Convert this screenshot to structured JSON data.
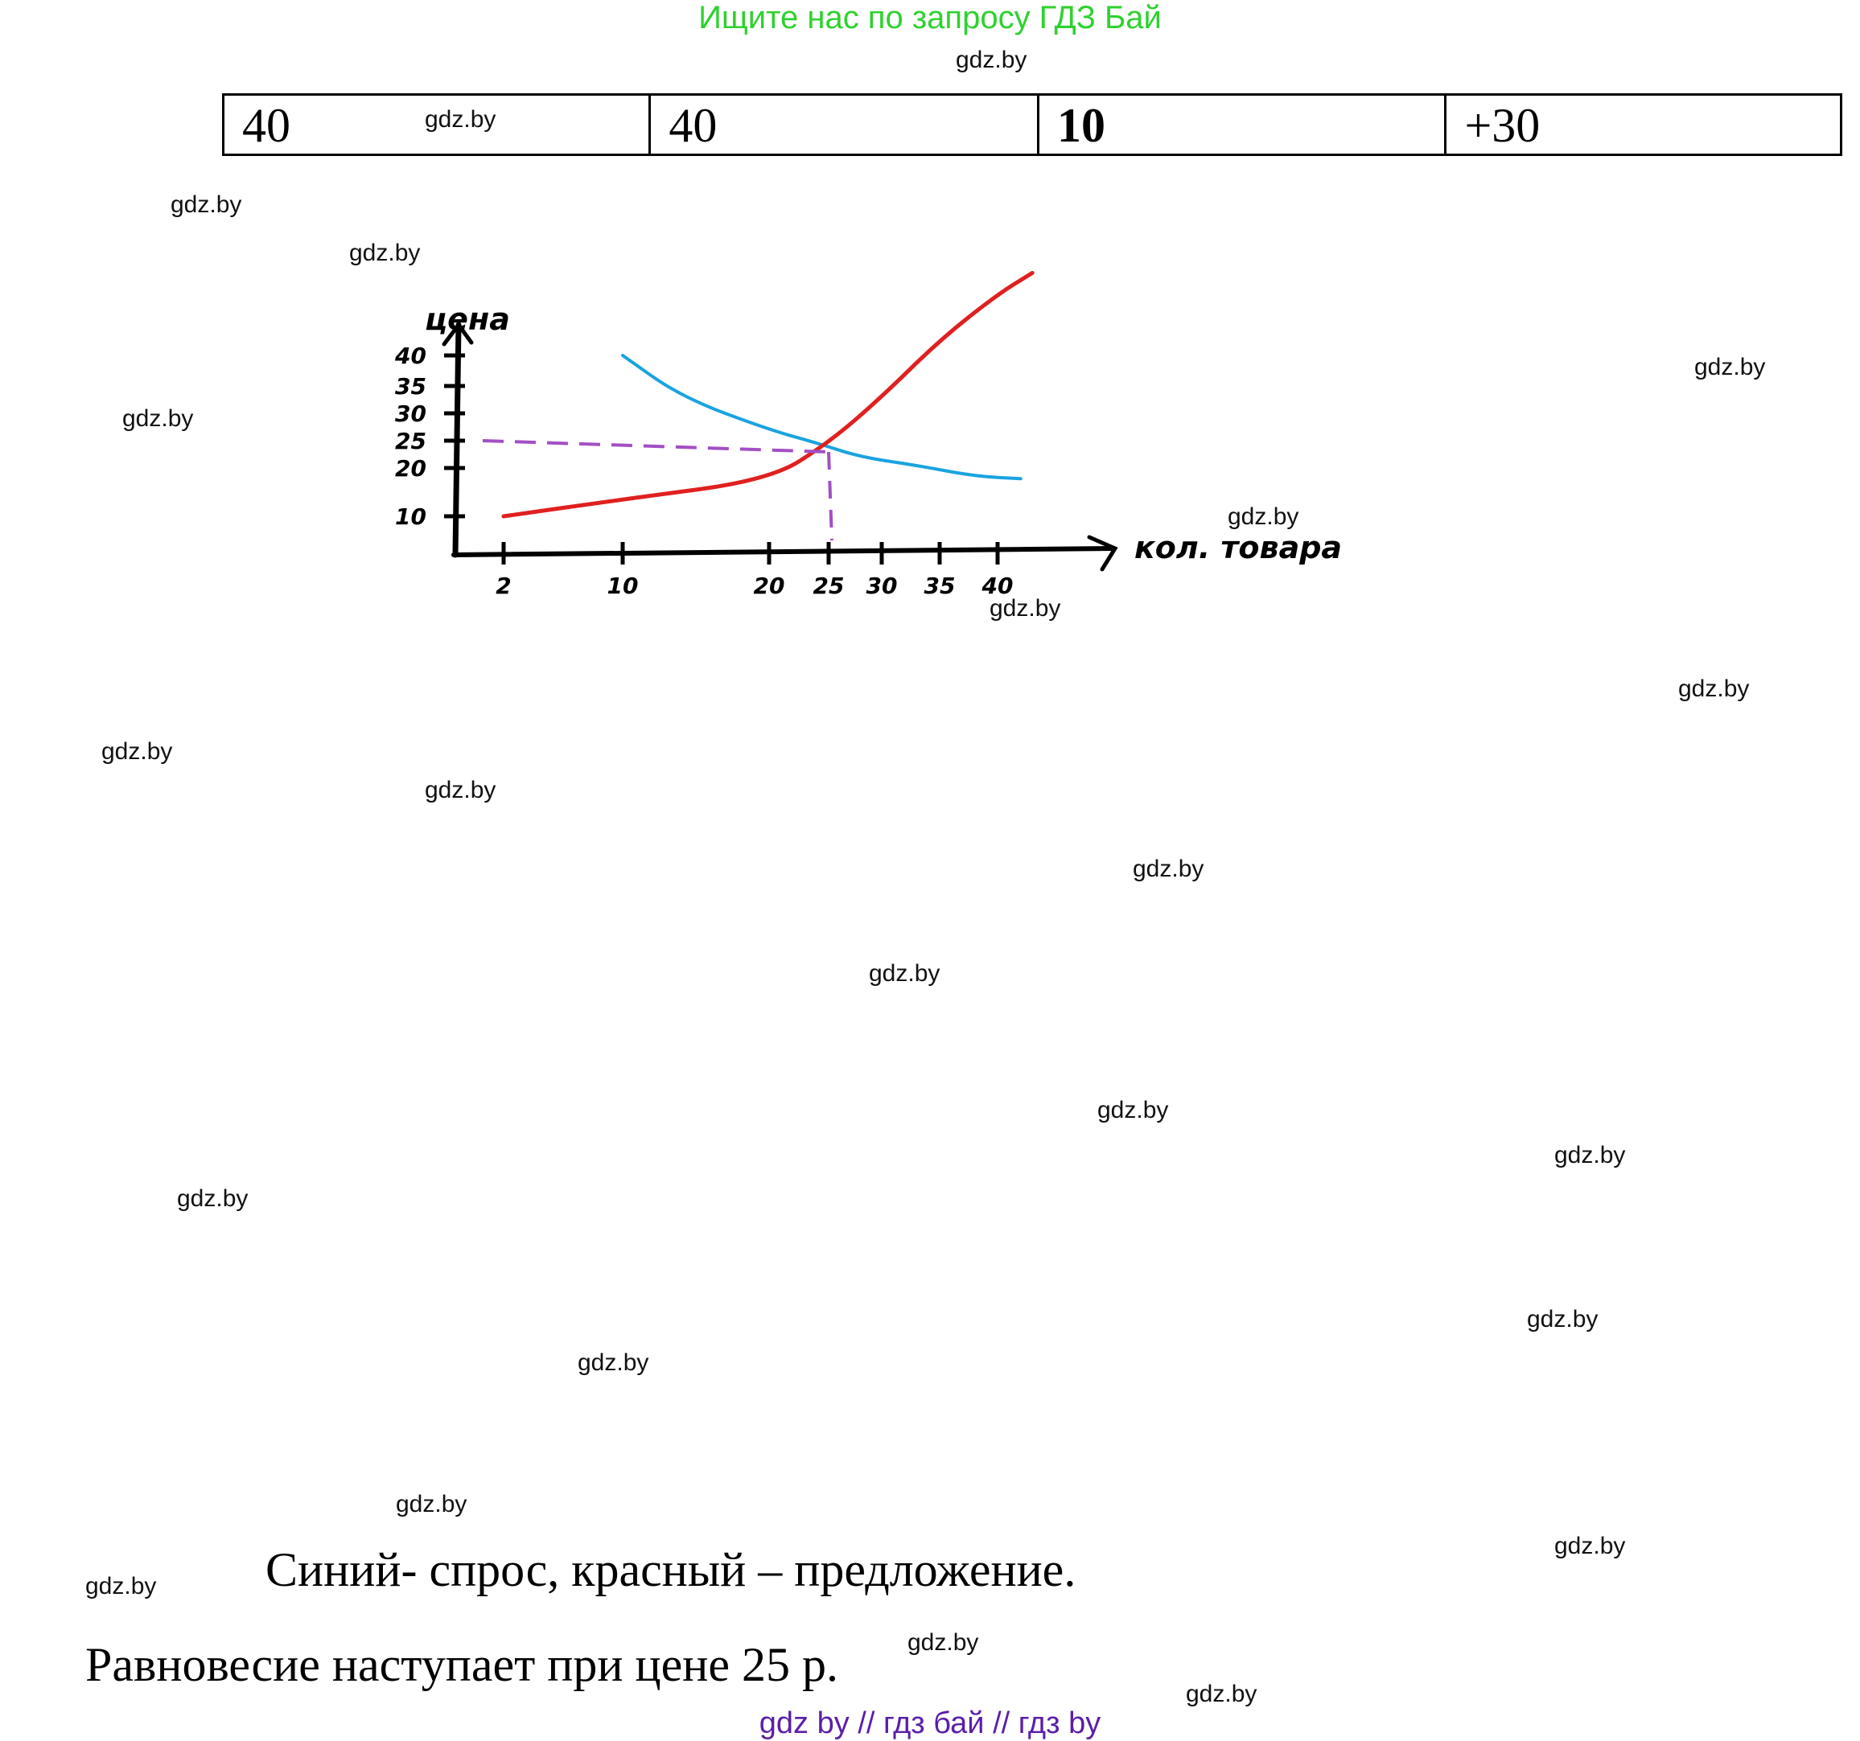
{
  "banner": "Ищите нас по запросу ГДЗ Бай",
  "watermark": "gdz.by",
  "table": {
    "cells": [
      {
        "text": "40",
        "bold": false
      },
      {
        "text": "40",
        "bold": false
      },
      {
        "text": "10",
        "bold": true
      },
      {
        "text": "+30",
        "bold": false
      }
    ]
  },
  "chart_data": {
    "type": "line",
    "ylabel": "цена",
    "xlabel": "кол. товара",
    "y_ticks": [
      10,
      20,
      25,
      30,
      35,
      40
    ],
    "x_ticks": [
      2,
      10,
      20,
      25,
      30,
      35,
      40
    ],
    "series": [
      {
        "color": "#1aa3e0",
        "x": [
          10,
          14,
          20,
          24,
          28,
          33,
          38,
          42
        ],
        "y": [
          40,
          33,
          27,
          24.6,
          22,
          20.5,
          18.3,
          17.8
        ]
      },
      {
        "color": "#e02020",
        "x": [
          2,
          10,
          20,
          25,
          30,
          35,
          40,
          43
        ],
        "y": [
          10,
          13.5,
          17.5,
          24.6,
          33,
          42.5,
          50,
          53.5
        ]
      }
    ],
    "equilibrium": {
      "x": 25,
      "y": 25
    },
    "guide_color": "#a24fc4"
  },
  "caption": "Синий- спрос, красный – предложение.",
  "conclusion": "Равновесие наступает при цене 25 р.",
  "footer": "gdz by  //  гдз бай  //  гдз by"
}
